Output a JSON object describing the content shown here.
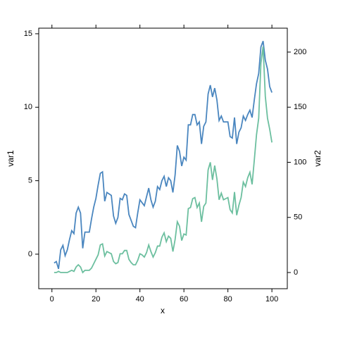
{
  "chart_data": {
    "type": "line",
    "x_label": "x",
    "y_label": "var1",
    "y2_label": "var2",
    "x": [
      1,
      2,
      3,
      4,
      5,
      6,
      7,
      8,
      9,
      10,
      11,
      12,
      13,
      14,
      15,
      16,
      17,
      18,
      19,
      20,
      21,
      22,
      23,
      24,
      25,
      26,
      27,
      28,
      29,
      30,
      31,
      32,
      33,
      34,
      35,
      36,
      37,
      38,
      39,
      40,
      41,
      42,
      43,
      44,
      45,
      46,
      47,
      48,
      49,
      50,
      51,
      52,
      53,
      54,
      55,
      56,
      57,
      58,
      59,
      60,
      61,
      62,
      63,
      64,
      65,
      66,
      67,
      68,
      69,
      70,
      71,
      72,
      73,
      74,
      75,
      76,
      77,
      78,
      79,
      80,
      81,
      82,
      83,
      84,
      85,
      86,
      87,
      88,
      89,
      90,
      91,
      92,
      93,
      94,
      95,
      96,
      97,
      98,
      99,
      100
    ],
    "series": [
      {
        "name": "var1",
        "color": "#4a86bf",
        "axis": "y",
        "values": [
          -0.6,
          -0.5,
          -1.0,
          0.3,
          0.6,
          -0.1,
          0.3,
          1.0,
          1.6,
          1.4,
          2.8,
          3.2,
          2.8,
          0.4,
          1.5,
          1.5,
          1.5,
          2.4,
          3.2,
          3.8,
          4.7,
          5.5,
          5.6,
          3.6,
          4.2,
          4.1,
          4.0,
          2.6,
          2.1,
          2.5,
          3.8,
          3.7,
          4.1,
          4.0,
          2.7,
          2.3,
          1.9,
          1.8,
          2.8,
          3.7,
          3.5,
          3.3,
          3.9,
          4.5,
          3.7,
          3.2,
          3.6,
          4.6,
          4.4,
          5.0,
          5.3,
          4.6,
          5.2,
          5.0,
          4.2,
          5.4,
          7.4,
          7.0,
          6.0,
          6.6,
          6.4,
          8.8,
          8.8,
          9.5,
          9.5,
          8.8,
          9.0,
          7.5,
          8.7,
          9.0,
          10.9,
          11.5,
          10.7,
          11.3,
          10.5,
          9.1,
          9.4,
          9.0,
          9.0,
          9.0,
          8.0,
          7.9,
          9.3,
          7.5,
          8.3,
          8.6,
          9.4,
          9.1,
          9.5,
          9.8,
          9.3,
          10.5,
          11.6,
          12.3,
          14.1,
          14.5,
          13.2,
          12.6,
          11.4,
          11.0
        ]
      },
      {
        "name": "var2",
        "color": "#6cbf9f",
        "axis": "y2",
        "values": [
          0,
          0,
          1,
          0,
          0,
          0,
          0,
          1,
          2,
          1,
          5,
          7,
          5,
          0,
          2,
          2,
          2,
          4,
          8,
          12,
          16,
          25,
          26,
          15,
          19,
          18,
          17,
          10,
          8,
          9,
          17,
          17,
          20,
          20,
          12,
          9,
          7,
          7,
          11,
          17,
          16,
          14,
          18,
          25,
          19,
          14,
          18,
          24,
          24,
          32,
          36,
          28,
          33,
          31,
          19,
          30,
          46,
          42,
          29,
          35,
          34,
          58,
          59,
          67,
          68,
          59,
          63,
          46,
          60,
          63,
          93,
          100,
          84,
          97,
          85,
          66,
          72,
          66,
          67,
          68,
          57,
          54,
          73,
          52,
          61,
          68,
          82,
          78,
          86,
          91,
          80,
          102,
          125,
          140,
          190,
          205,
          160,
          140,
          130,
          118
        ]
      }
    ],
    "xlim": [
      -6,
      107
    ],
    "xticks": [
      0,
      20,
      40,
      60,
      80,
      100
    ],
    "ylim": [
      -2.35,
      15.38
    ],
    "yticks": [
      0,
      5,
      10,
      15
    ],
    "y2lim": [
      -14.7,
      221.7
    ],
    "y2ticks": [
      0,
      50,
      100,
      150,
      200
    ],
    "grid": false
  }
}
